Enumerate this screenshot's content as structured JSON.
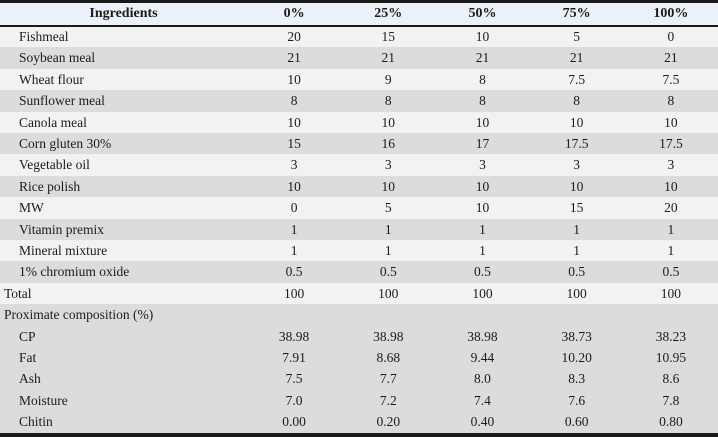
{
  "colors": {
    "header_bg": "#eaf1f8",
    "row_light": "#f2f2f3",
    "row_dark": "#dcdcde",
    "border": "#191919",
    "text": "#1b1b1b"
  },
  "table": {
    "columns": [
      "Ingredients",
      "0%",
      "25%",
      "50%",
      "75%",
      "100%"
    ],
    "rows": [
      {
        "label": "Fishmeal",
        "indent": true,
        "shade": "light",
        "values": [
          "20",
          "15",
          "10",
          "5",
          "0"
        ]
      },
      {
        "label": "Soybean meal",
        "indent": true,
        "shade": "dark",
        "values": [
          "21",
          "21",
          "21",
          "21",
          "21"
        ]
      },
      {
        "label": "Wheat flour",
        "indent": true,
        "shade": "light",
        "values": [
          "10",
          "9",
          "8",
          "7.5",
          "7.5"
        ]
      },
      {
        "label": "Sunflower meal",
        "indent": true,
        "shade": "dark",
        "values": [
          "8",
          "8",
          "8",
          "8",
          "8"
        ]
      },
      {
        "label": "Canola meal",
        "indent": true,
        "shade": "light",
        "values": [
          "10",
          "10",
          "10",
          "10",
          "10"
        ]
      },
      {
        "label": "Corn gluten 30%",
        "indent": true,
        "shade": "dark",
        "values": [
          "15",
          "16",
          "17",
          "17.5",
          "17.5"
        ]
      },
      {
        "label": "Vegetable oil",
        "indent": true,
        "shade": "light",
        "values": [
          "3",
          "3",
          "3",
          "3",
          "3"
        ]
      },
      {
        "label": "Rice polish",
        "indent": true,
        "shade": "dark",
        "values": [
          "10",
          "10",
          "10",
          "10",
          "10"
        ]
      },
      {
        "label": "MW",
        "indent": true,
        "shade": "light",
        "values": [
          "0",
          "5",
          "10",
          "15",
          "20"
        ]
      },
      {
        "label": "Vitamin premix",
        "indent": true,
        "shade": "dark",
        "values": [
          "1",
          "1",
          "1",
          "1",
          "1"
        ]
      },
      {
        "label": "Mineral mixture",
        "indent": true,
        "shade": "light",
        "values": [
          "1",
          "1",
          "1",
          "1",
          "1"
        ]
      },
      {
        "label": "1% chromium oxide",
        "indent": true,
        "shade": "dark",
        "values": [
          "0.5",
          "0.5",
          "0.5",
          "0.5",
          "0.5"
        ]
      },
      {
        "label": "Total",
        "indent": false,
        "shade": "light",
        "values": [
          "100",
          "100",
          "100",
          "100",
          "100"
        ]
      },
      {
        "label": "Proximate composition (%)",
        "section": true,
        "shade": "dark",
        "values": []
      },
      {
        "label": "CP",
        "indent": true,
        "shade": "dark",
        "values": [
          "38.98",
          "38.98",
          "38.98",
          "38.73",
          "38.23"
        ]
      },
      {
        "label": "Fat",
        "indent": true,
        "shade": "dark",
        "values": [
          "7.91",
          "8.68",
          "9.44",
          "10.20",
          "10.95"
        ]
      },
      {
        "label": "Ash",
        "indent": true,
        "shade": "dark",
        "values": [
          "7.5",
          "7.7",
          "8.0",
          "8.3",
          "8.6"
        ]
      },
      {
        "label": "Moisture",
        "indent": true,
        "shade": "dark",
        "values": [
          "7.0",
          "7.2",
          "7.4",
          "7.6",
          "7.8"
        ]
      },
      {
        "label": "Chitin",
        "indent": true,
        "shade": "dark",
        "values": [
          "0.00",
          "0.20",
          "0.40",
          "0.60",
          "0.80"
        ]
      }
    ]
  }
}
